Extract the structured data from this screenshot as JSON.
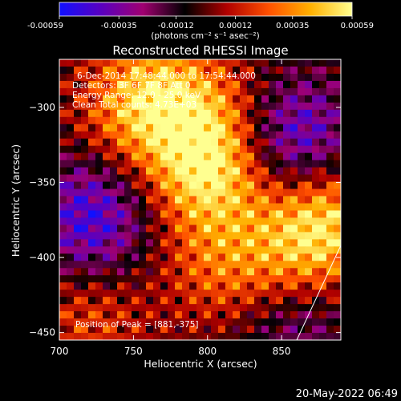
{
  "chart_data": {
    "type": "heatmap",
    "title": "Reconstructed RHESSI Image",
    "xlabel": "Heliocentric X (arcsec)",
    "ylabel": "Heliocentric Y (arcsec)",
    "xlim": [
      700,
      890
    ],
    "ylim": [
      -455,
      -268
    ],
    "x_ticks": [
      "700",
      "750",
      "800",
      "850"
    ],
    "y_ticks": [
      "-300",
      "-350",
      "-400",
      "-450"
    ],
    "colorbar": {
      "ticks": [
        "-0.00059",
        "-0.00035",
        "-0.00012",
        "0.00012",
        "0.00035",
        "0.00059"
      ],
      "range": [
        -0.00059,
        0.00059
      ],
      "unit_label": "(photons cm⁻² s⁻¹ asec⁻²)",
      "colors": [
        "#1010ff",
        "#5a00c0",
        "#a00070",
        "#000000",
        "#b00000",
        "#ff5000",
        "#ffb000",
        "#ffff90"
      ]
    },
    "info_lines": [
      "6-Dec-2014 17:48:44.000 to 17:54:44.000",
      "Detectors: 3F 6F 7F 8F  Att 0",
      "Energy Range: 12.0 - 25.0 keV",
      "Clean    Total counts: 4.73E+03"
    ],
    "peak_label": "Position of Peak = [881,-375]",
    "peak_position": [
      881,
      -375
    ],
    "bright_regions": [
      {
        "x": 800,
        "y": -345,
        "level": 1.0
      },
      {
        "x": 760,
        "y": -290,
        "level": 0.85
      },
      {
        "x": 880,
        "y": -375,
        "level": 0.9
      },
      {
        "x": 800,
        "y": -305,
        "level": 0.6
      },
      {
        "x": 740,
        "y": -330,
        "level": 0.5
      },
      {
        "x": 810,
        "y": -405,
        "level": 0.55
      },
      {
        "x": 860,
        "y": -400,
        "level": 0.5
      },
      {
        "x": 720,
        "y": -440,
        "level": 0.45
      }
    ],
    "dim_regions": [
      {
        "x": 860,
        "y": -320,
        "level": -0.9
      },
      {
        "x": 720,
        "y": -380,
        "level": -0.7
      },
      {
        "x": 730,
        "y": -350,
        "level": -0.55
      },
      {
        "x": 860,
        "y": -445,
        "level": -0.5
      }
    ]
  },
  "footer": {
    "date": "20-May-2022 06:49"
  }
}
